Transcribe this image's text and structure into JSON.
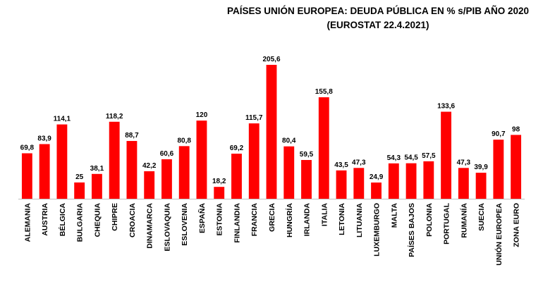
{
  "chart_data": {
    "type": "bar",
    "title": "PAÍSES UNIÓN EUROPEA: DEUDA PÚBLICA EN % s/PIB AÑO 2020",
    "subtitle": "(EUROSTAT 22.4.2021)",
    "xlabel": "",
    "ylabel": "",
    "ylim": [
      0,
      210
    ],
    "grid": false,
    "bar_color": "#ff0000",
    "categories": [
      "ALEMANIA",
      "AUSTRIA",
      "BÉLGICA",
      "BULGARIA",
      "CHEQUIA",
      "CHIPRE",
      "CROACIA",
      "DINAMARCA",
      "ESLOVAQUIA",
      "ESLOVENIA",
      "ESPAÑA",
      "ESTONIA",
      "FINLANDIA",
      "FRANCIA",
      "GRECIA",
      "HUNGRÍA",
      "IRLANDA",
      "ITALIA",
      "LETONIA",
      "LITUANIA",
      "LUXEMBURGO",
      "MALTA",
      "PAÍSES BAJOS",
      "POLONIA",
      "PORTUGAL",
      "RUMANÍA",
      "SUECIA",
      "UNIÓN EUROPEA",
      "ZONA EURO"
    ],
    "values": [
      69.8,
      83.9,
      114.1,
      25,
      38.1,
      118.2,
      88.7,
      42.2,
      60.6,
      80.8,
      120,
      18.2,
      69.2,
      115.7,
      205.6,
      80.4,
      59.5,
      155.8,
      43.5,
      47.3,
      24.9,
      54.3,
      54.5,
      57.5,
      133.6,
      47.3,
      39.9,
      90.7,
      98
    ],
    "value_labels": [
      "69,8",
      "83,9",
      "114,1",
      "25",
      "38,1",
      "118,2",
      "88,7",
      "42,2",
      "60,6",
      "80,8",
      "120",
      "18,2",
      "69,2",
      "115,7",
      "205,6",
      "80,4",
      "59,5",
      "155,8",
      "43,5",
      "47,3",
      "24,9",
      "54,3",
      "54,5",
      "57,5",
      "133,6",
      "47,3",
      "39,9",
      "90,7",
      "98"
    ]
  }
}
